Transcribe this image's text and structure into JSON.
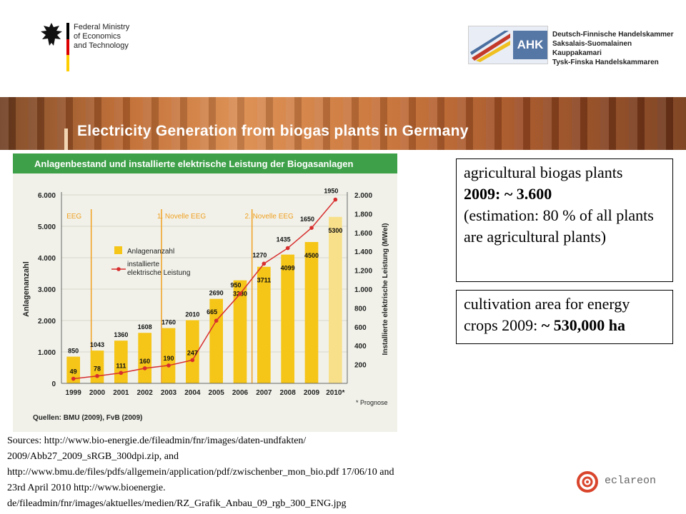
{
  "header": {
    "bmwi_lines": [
      "Federal Ministry",
      "of Economics",
      "and Technology"
    ],
    "ahk_mark": "AHK",
    "ahk_lines": [
      "Deutsch-Finnische Handelskammer",
      "Saksalais-Suomalainen Kauppakamari",
      "Tysk-Finska Handelskammaren"
    ]
  },
  "slide_title": "Electricity Generation from biogas plants in Germany",
  "chart_data": {
    "type": "bar",
    "title": "Anlagenbestand und installierte elektrische Leistung der Biogasanlagen",
    "categories": [
      "1999",
      "2000",
      "2001",
      "2002",
      "2003",
      "2004",
      "2005",
      "2006",
      "2007",
      "2008",
      "2009",
      "2010*"
    ],
    "series": [
      {
        "name": "Anlagenanzahl",
        "type": "bar",
        "axis": "left",
        "values": [
          850,
          1043,
          1360,
          1608,
          1760,
          2010,
          2690,
          3280,
          3711,
          4099,
          4500,
          5300
        ]
      },
      {
        "name": "installierte elektrische Leistung",
        "type": "line",
        "axis": "right",
        "values": [
          49,
          78,
          111,
          160,
          190,
          247,
          665,
          950,
          1270,
          1435,
          1650,
          1950
        ]
      }
    ],
    "ylabel": "Anlagenanzahl",
    "y2label": "Installierte elektrische Leistung (MWel)",
    "ylim": [
      0,
      6000
    ],
    "y2lim": [
      0,
      2000
    ],
    "yticks": [
      "0",
      "1.000",
      "2.000",
      "3.000",
      "4.000",
      "5.000",
      "6.000"
    ],
    "y2ticks": [
      "200",
      "400",
      "600",
      "800",
      "1.000",
      "1.200",
      "1.400",
      "1.600",
      "1.800",
      "2.000"
    ],
    "bar_labels": [
      "850",
      "1043",
      "1360",
      "1608",
      "1760",
      "2010",
      "3280",
      "3711",
      "4099",
      "4500",
      "5300"
    ],
    "bar_label_2005": "2690",
    "line_labels": [
      "49",
      "78",
      "111",
      "160",
      "190",
      "247",
      "665",
      "950",
      "1270",
      "1435",
      "1650",
      "1950"
    ],
    "annotations": [
      "EEG",
      "1. Novelle EEG",
      "2. Novelle EEG"
    ],
    "footnote": "* Prognose",
    "source": "Quellen: BMU (2009), FvB (2009)",
    "colors": {
      "header": "#3ea048",
      "bar": "#f5c518",
      "bar_forecast": "#f8e08a",
      "line": "#d72e2e",
      "annot": "#f0a020",
      "bg": "#f1f1ea"
    }
  },
  "info_box_1": {
    "line1": "agricultural biogas plants",
    "line2": "2009: ~ 3.600",
    "line3": "(estimation: 80 % of all plants are agricultural plants)"
  },
  "info_box_2": {
    "text": "cultivation area for energy crops 2009: ",
    "bold": "~ 530,000 ha"
  },
  "sources": {
    "lines": [
      "Sources: http://www.bio-energie.de/fileadmin/fnr/images/daten-undfakten/",
      "2009/Abb27_2009_sRGB_300dpi.zip, and",
      "http://www.bmu.de/files/pdfs/allgemein/application/pdf/zwischenber_mon_bio.pdf 17/06/10 and",
      "23rd April 2010 http://www.bioenergie.",
      "de/fileadmin/fnr/images/aktuelles/medien/RZ_Grafik_Anbau_09_rgb_300_ENG.jpg"
    ]
  },
  "footer": {
    "logo_text": "eclareon"
  }
}
